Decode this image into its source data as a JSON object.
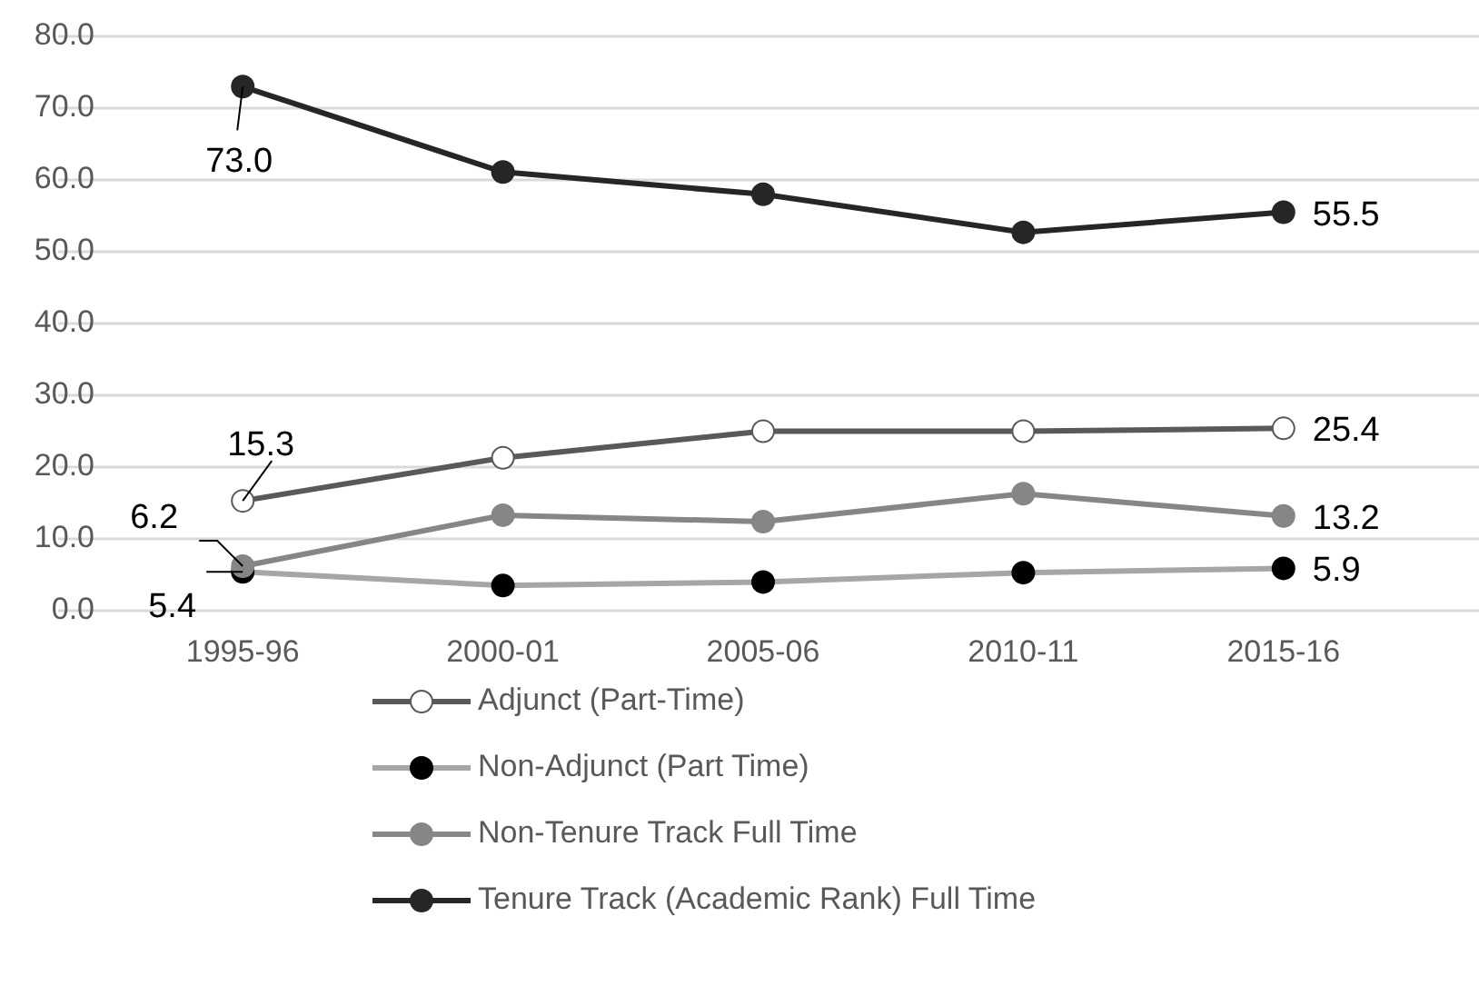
{
  "chart_data": {
    "type": "line",
    "categories": [
      "1995-96",
      "2000-01",
      "2005-06",
      "2010-11",
      "2015-16"
    ],
    "series": [
      {
        "name": "Adjunct (Part-Time)",
        "color": "#595959",
        "values": [
          15.3,
          21.3,
          25.0,
          25.0,
          25.4
        ],
        "value_labels": [
          "15.3",
          null,
          null,
          null,
          "25.4"
        ]
      },
      {
        "name": "Non-Adjunct (Part Time)",
        "color": "#a6a6a6",
        "values": [
          5.4,
          3.5,
          4.0,
          5.3,
          5.9
        ],
        "value_labels": [
          "5.4",
          null,
          null,
          null,
          "5.9"
        ]
      },
      {
        "name": "Non-Tenure Track Full Time",
        "color": "#868686",
        "values": [
          6.2,
          13.3,
          12.4,
          16.3,
          13.2
        ],
        "value_labels": [
          "6.2",
          null,
          null,
          null,
          "13.2"
        ]
      },
      {
        "name": "Tenure Track (Academic Rank) Full Time",
        "color": "#262626",
        "values": [
          73.0,
          61.1,
          58.0,
          52.7,
          55.5
        ],
        "value_labels": [
          "73.0",
          null,
          null,
          null,
          "55.5"
        ]
      }
    ],
    "ylim": [
      0,
      80
    ],
    "yticks": [
      {
        "value": 0,
        "label": "0.0"
      },
      {
        "value": 10,
        "label": "10.0"
      },
      {
        "value": 20,
        "label": "20.0"
      },
      {
        "value": 30,
        "label": "30.0"
      },
      {
        "value": 40,
        "label": "40.0"
      },
      {
        "value": 50,
        "label": "50.0"
      },
      {
        "value": 60,
        "label": "60.0"
      },
      {
        "value": 70,
        "label": "70.0"
      },
      {
        "value": 80,
        "label": "80.0"
      }
    ],
    "grid": "y",
    "legend": "bottom",
    "marker": "circle",
    "line_style": "solid"
  }
}
